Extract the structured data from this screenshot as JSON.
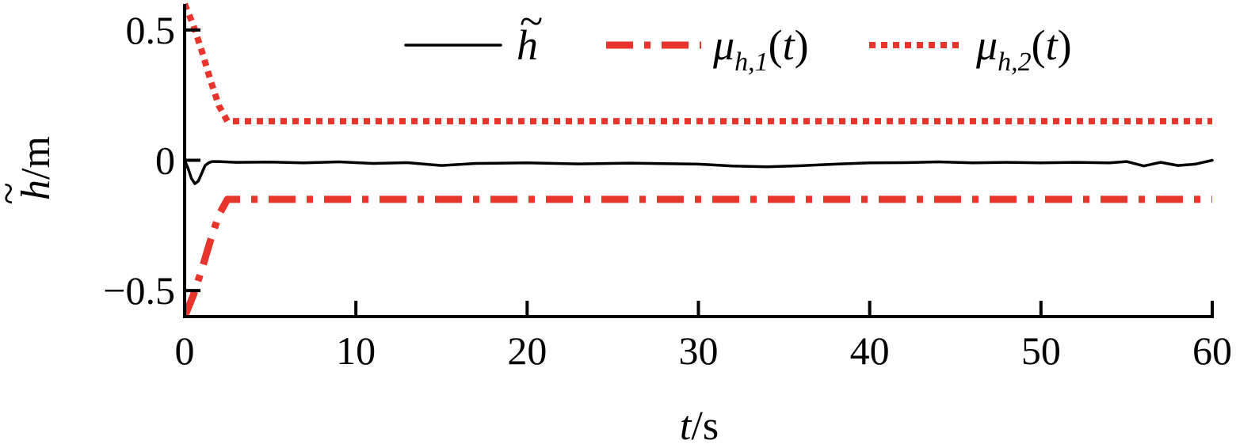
{
  "chart_data": {
    "type": "line",
    "xlabel": {
      "var": "t",
      "unit": "/s"
    },
    "ylabel": {
      "var": "h",
      "accent": "~",
      "unit": "/m"
    },
    "xlim": [
      0,
      60
    ],
    "ylim": [
      -0.6,
      0.6
    ],
    "xticks": [
      0,
      10,
      20,
      30,
      40,
      50,
      60
    ],
    "xtick_labels": [
      "0",
      "10",
      "20",
      "30",
      "40",
      "50",
      "60"
    ],
    "yticks": [
      -0.5,
      0,
      0.5
    ],
    "ytick_labels": [
      "−0.5",
      "0",
      "0.5"
    ],
    "grid": false,
    "legend_position": "top",
    "series": [
      {
        "name": "h̃",
        "legend": {
          "main": "h",
          "accent": "~",
          "sub": "",
          "suffix": ""
        },
        "color": "#000000",
        "style": "solid",
        "x": [
          0,
          0.2,
          0.4,
          0.6,
          0.8,
          1.0,
          1.2,
          1.4,
          1.6,
          2,
          3,
          5,
          7,
          9,
          11,
          13,
          15,
          17,
          20,
          23,
          26,
          30,
          32,
          34,
          36,
          38,
          40,
          42,
          44,
          46,
          48,
          50,
          52,
          54,
          55,
          56,
          57,
          58,
          59,
          60
        ],
        "y": [
          0,
          -0.03,
          -0.07,
          -0.09,
          -0.08,
          -0.05,
          -0.02,
          -0.01,
          -0.005,
          -0.005,
          -0.008,
          -0.007,
          -0.01,
          -0.006,
          -0.012,
          -0.009,
          -0.02,
          -0.012,
          -0.01,
          -0.014,
          -0.011,
          -0.015,
          -0.022,
          -0.025,
          -0.021,
          -0.015,
          -0.01,
          -0.009,
          -0.006,
          -0.01,
          -0.008,
          -0.01,
          -0.008,
          -0.01,
          -0.005,
          -0.022,
          -0.008,
          -0.02,
          -0.015,
          0
        ]
      },
      {
        "name": "μ_{h,1}(t)",
        "legend": {
          "main": "μ",
          "accent": "",
          "sub": "h,1",
          "suffix": "(t)"
        },
        "color": "#e8352c",
        "style": "dashdot",
        "x": [
          0,
          0.5,
          1.0,
          1.5,
          2.0,
          2.5,
          3,
          10,
          20,
          30,
          40,
          50,
          60
        ],
        "y": [
          -0.6,
          -0.52,
          -0.42,
          -0.31,
          -0.21,
          -0.15,
          -0.15,
          -0.15,
          -0.15,
          -0.15,
          -0.15,
          -0.15,
          -0.15
        ]
      },
      {
        "name": "μ_{h,2}(t)",
        "legend": {
          "main": "μ",
          "accent": "",
          "sub": "h,2",
          "suffix": "(t)"
        },
        "color": "#e8352c",
        "style": "dotted",
        "x": [
          0,
          0.5,
          1.0,
          1.5,
          2.0,
          2.5,
          3,
          10,
          20,
          30,
          40,
          50,
          60
        ],
        "y": [
          0.6,
          0.52,
          0.42,
          0.31,
          0.21,
          0.15,
          0.15,
          0.15,
          0.15,
          0.15,
          0.15,
          0.15,
          0.15
        ]
      }
    ]
  }
}
